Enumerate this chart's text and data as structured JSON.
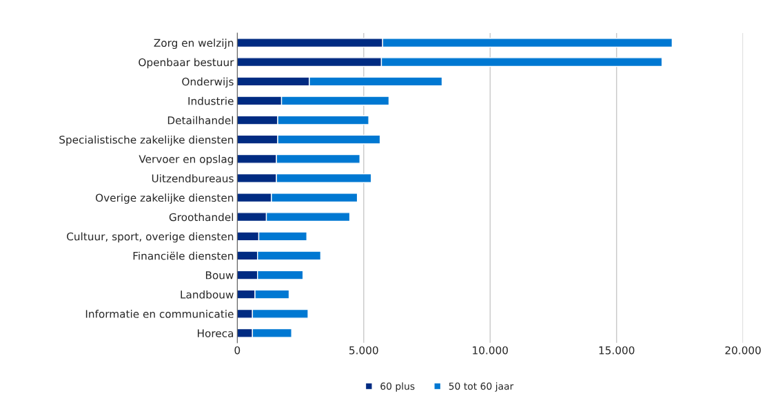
{
  "chart_data": {
    "type": "bar",
    "orientation": "horizontal",
    "stacked": true,
    "categories": [
      "Zorg en welzijn",
      "Openbaar bestuur",
      "Onderwijs",
      "Industrie",
      "Detailhandel",
      "Specialistische zakelijke diensten",
      "Vervoer en opslag",
      "Uitzendbureaus",
      "Overige zakelijke diensten",
      "Groothandel",
      "Cultuur, sport, overige diensten",
      "Financiële diensten",
      "Bouw",
      "Landbouw",
      "Informatie en communicatie",
      "Horeca"
    ],
    "series": [
      {
        "name": "60 plus",
        "color": "#002b82",
        "values": [
          5750,
          5700,
          2850,
          1750,
          1600,
          1600,
          1550,
          1550,
          1350,
          1150,
          850,
          800,
          800,
          700,
          600,
          600
        ]
      },
      {
        "name": "50 tot 60 jaar",
        "color": "#0078d2",
        "values": [
          11450,
          11100,
          5250,
          4250,
          3600,
          4050,
          3300,
          3750,
          3400,
          3300,
          1900,
          2500,
          1800,
          1350,
          2200,
          1550
        ]
      }
    ],
    "xlim": [
      0,
      20000
    ],
    "xticks": [
      0,
      {
        "value": 5000,
        "label": "5.000"
      },
      {
        "value": 10000,
        "label": "10.000"
      },
      {
        "value": 15000,
        "label": "15.000"
      },
      {
        "value": 20000,
        "label": "20.000"
      }
    ],
    "grid": "x",
    "legend": "bottom"
  }
}
